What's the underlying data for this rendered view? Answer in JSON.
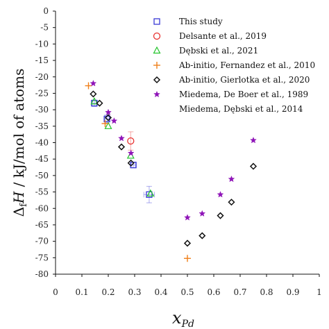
{
  "chart_data": {
    "type": "scatter",
    "title": "",
    "xlabel": "x",
    "xlabel_sub": "Pd",
    "ylabel": "ΔfH / kJ/mol of atoms",
    "ylabel_sub": "f",
    "xlim": [
      0,
      1
    ],
    "ylim": [
      -80,
      0
    ],
    "x_ticks": [
      0,
      0.1,
      0.2,
      0.3,
      0.4,
      0.5,
      0.6,
      0.7,
      0.8,
      0.9,
      1
    ],
    "x_tick_labels": [
      "0",
      "0.1",
      "0.2",
      "0.3",
      "0.4",
      "0.5",
      "0.6",
      "0.7",
      "0.8",
      "0.9",
      "1"
    ],
    "y_ticks": [
      0,
      -5,
      -10,
      -15,
      -20,
      -25,
      -30,
      -35,
      -40,
      -45,
      -50,
      -55,
      -60,
      -65,
      -70,
      -75,
      -80
    ],
    "y_tick_labels": [
      "0",
      "-5",
      "-10",
      "-15",
      "-20",
      "-25",
      "-30",
      "-35",
      "-40",
      "-45",
      "-50",
      "-55",
      "-60",
      "-65",
      "-70",
      "-75",
      "-80"
    ],
    "grid": false,
    "legend_position": "top-right",
    "series": [
      {
        "name": "This study",
        "marker": "square",
        "color": "#3a3ad6",
        "points": [
          {
            "x": 0.147,
            "y": -28.0,
            "xerr": 0.008,
            "yerr": 1.0
          },
          {
            "x": 0.195,
            "y": -32.8,
            "xerr": 0.008,
            "yerr": 1.2
          },
          {
            "x": 0.295,
            "y": -46.8,
            "xerr": 0.008,
            "yerr": 0.8
          },
          {
            "x": 0.355,
            "y": -55.8,
            "xerr": 0.02,
            "yerr": 2.5
          }
        ]
      },
      {
        "name": "Delsante et al., 2019",
        "marker": "circle",
        "color": "#e8312f",
        "points": [
          {
            "x": 0.285,
            "y": -39.5,
            "xerr": 0,
            "yerr": 2.8
          }
        ]
      },
      {
        "name": "Dębski et al., 2021",
        "marker": "triangle",
        "color": "#22c42a",
        "points": [
          {
            "x": 0.147,
            "y": -27.5
          },
          {
            "x": 0.2,
            "y": -35.0
          },
          {
            "x": 0.285,
            "y": -44.0
          },
          {
            "x": 0.36,
            "y": -55.5
          }
        ]
      },
      {
        "name": "Ab-initio, Fernandez et al., 2010",
        "marker": "plus",
        "color": "#f07f1a",
        "points": [
          {
            "x": 0.125,
            "y": -22.7
          },
          {
            "x": 0.188,
            "y": -34.2
          },
          {
            "x": 0.5,
            "y": -75.2
          }
        ]
      },
      {
        "name": "Ab-initio, Gierlotka et al., 2020",
        "marker": "diamond",
        "color": "#111111",
        "points": [
          {
            "x": 0.143,
            "y": -25.2
          },
          {
            "x": 0.167,
            "y": -28.0
          },
          {
            "x": 0.2,
            "y": -32.4
          },
          {
            "x": 0.25,
            "y": -41.3
          },
          {
            "x": 0.286,
            "y": -46.2
          },
          {
            "x": 0.5,
            "y": -70.6
          },
          {
            "x": 0.556,
            "y": -68.3
          },
          {
            "x": 0.625,
            "y": -62.2
          },
          {
            "x": 0.667,
            "y": -58.1
          },
          {
            "x": 0.75,
            "y": -47.2
          }
        ]
      },
      {
        "name": "Miedema, De Boer et al., 1989\nMiedema, Dębski et al., 2014",
        "marker": "star",
        "color": "#8f14b8",
        "points": [
          {
            "x": 0.143,
            "y": -22.0
          },
          {
            "x": 0.2,
            "y": -30.8
          },
          {
            "x": 0.222,
            "y": -33.4
          },
          {
            "x": 0.25,
            "y": -38.7
          },
          {
            "x": 0.286,
            "y": -43.2
          },
          {
            "x": 0.5,
            "y": -62.8
          },
          {
            "x": 0.556,
            "y": -61.6
          },
          {
            "x": 0.625,
            "y": -55.8
          },
          {
            "x": 0.667,
            "y": -51.1
          },
          {
            "x": 0.75,
            "y": -39.3
          }
        ]
      }
    ]
  }
}
